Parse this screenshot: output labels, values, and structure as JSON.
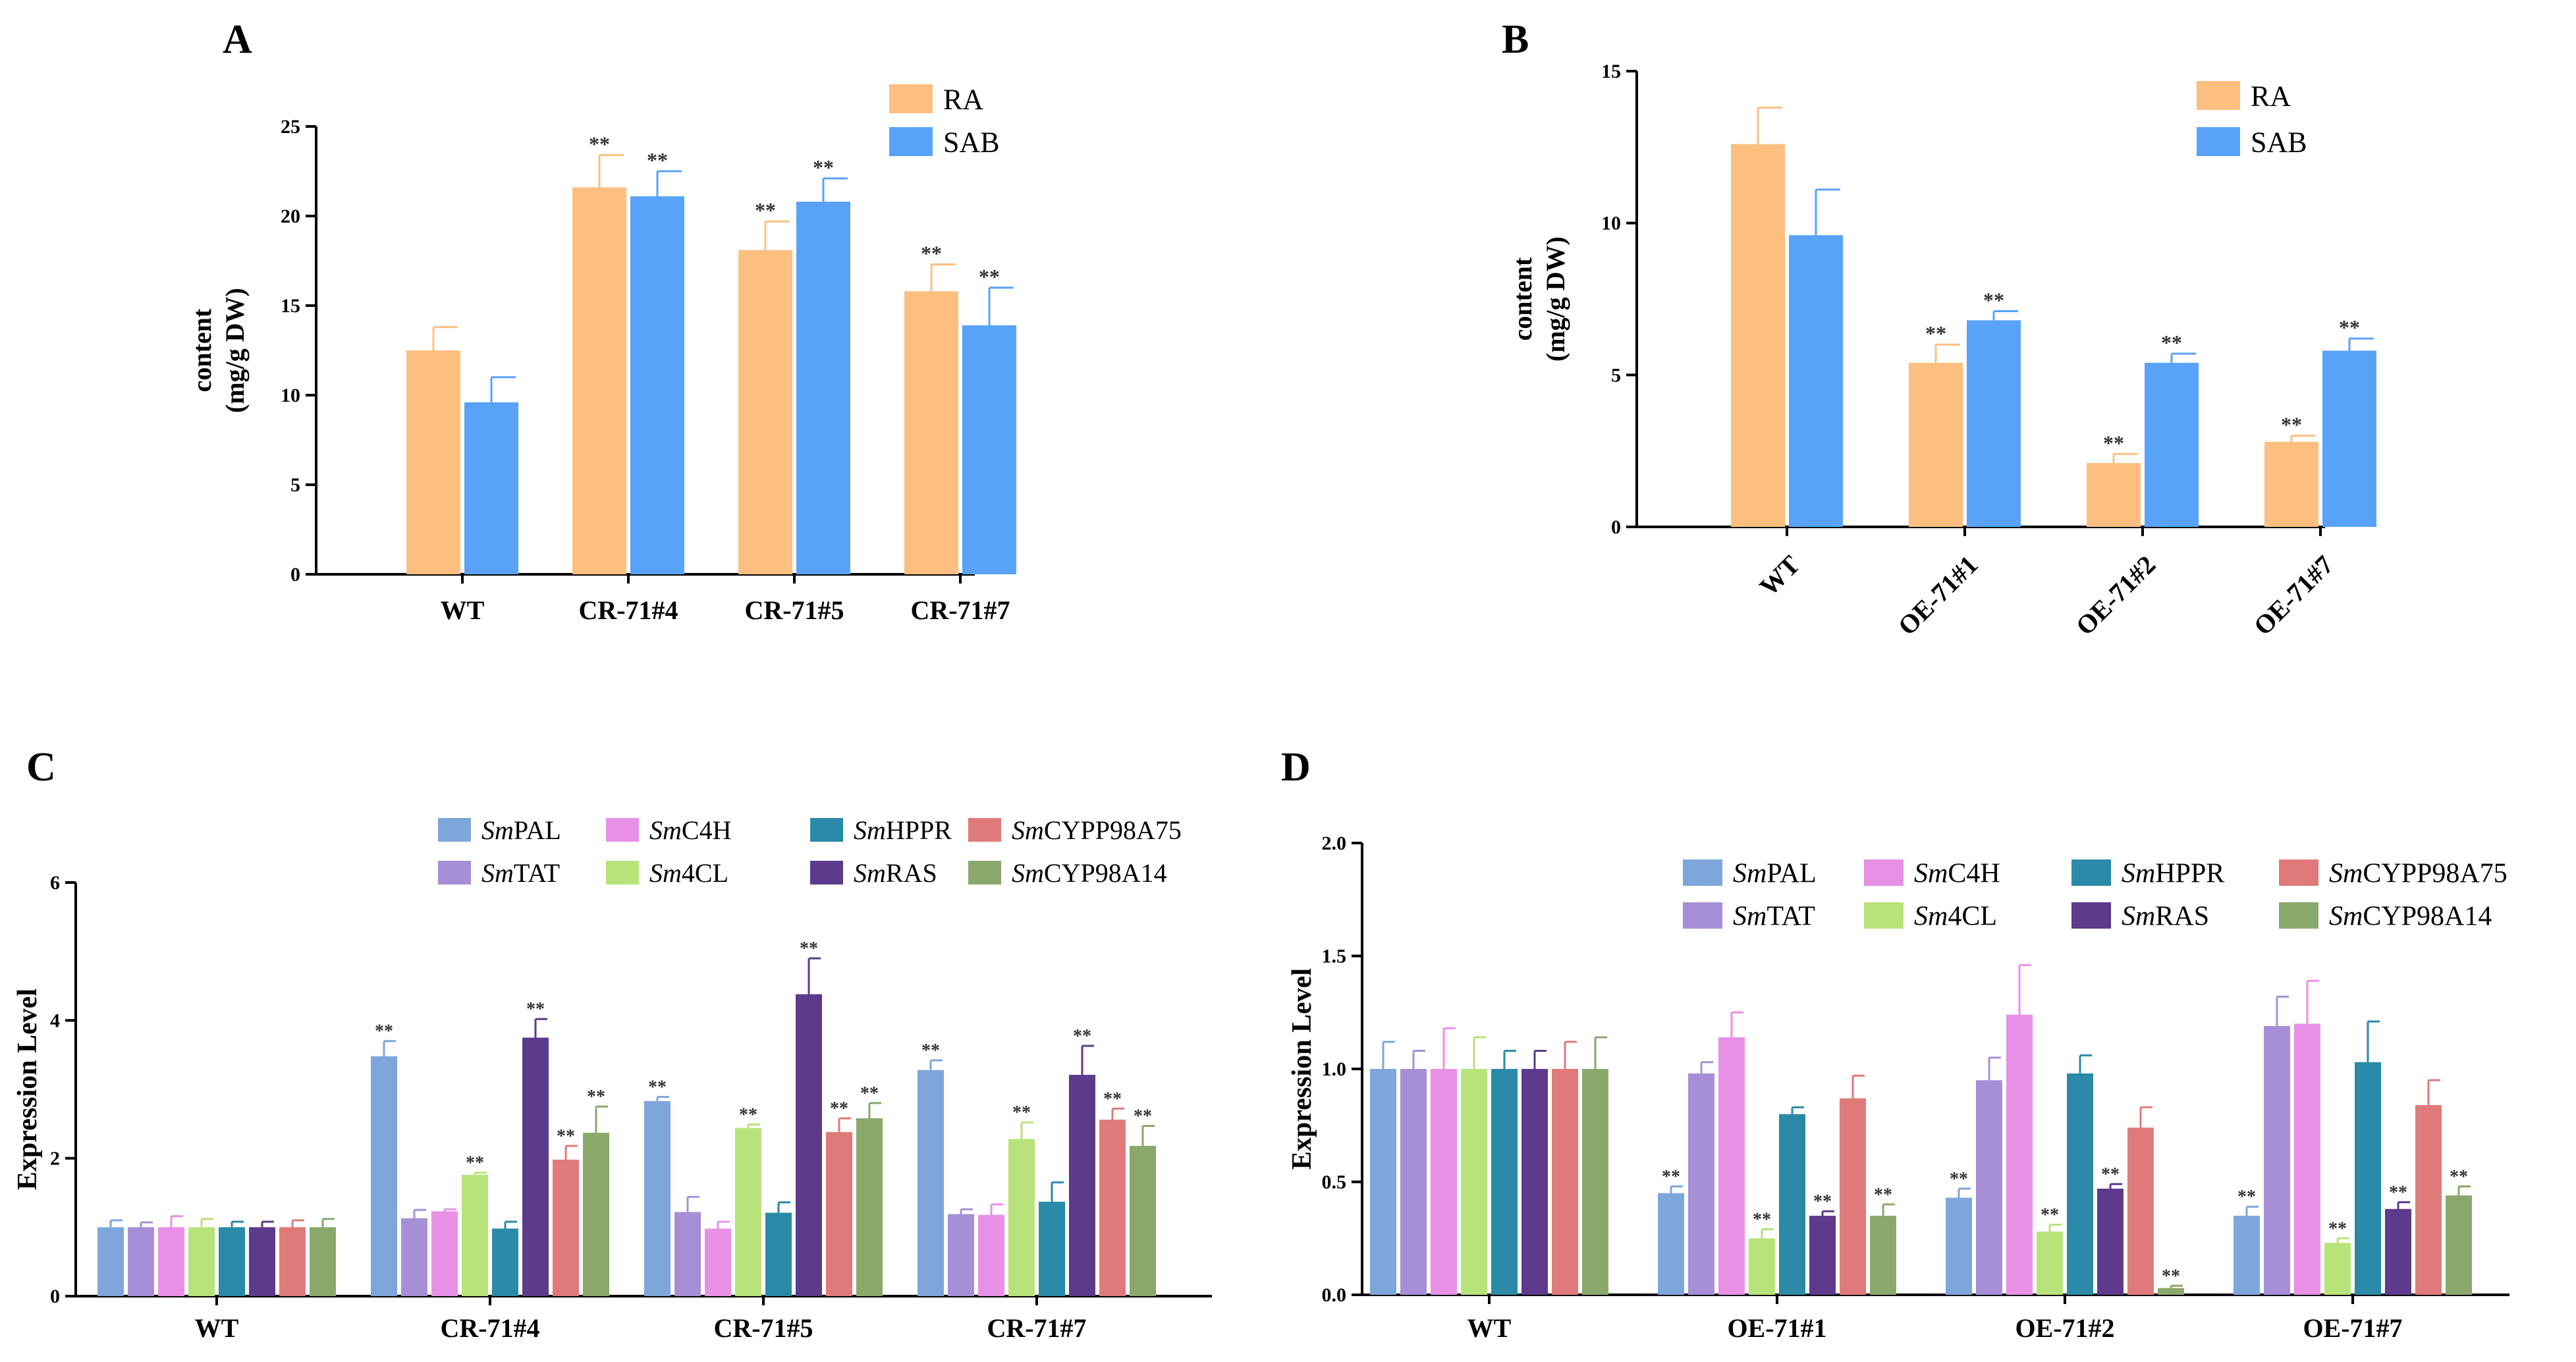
{
  "figure": {
    "panels": [
      "A",
      "B",
      "C",
      "D"
    ]
  },
  "chart_data": [
    {
      "panel": "A",
      "type": "bar",
      "title": "",
      "ylabel": [
        "content",
        "(mg/g DW)"
      ],
      "xlabel": "",
      "ylim": [
        0,
        25
      ],
      "yticks": [
        0,
        5,
        10,
        15,
        20,
        25
      ],
      "categories": [
        "WT",
        "CR-71#4",
        "CR-71#5",
        "CR-71#7"
      ],
      "series": [
        {
          "name": "RA",
          "color": "#FDBF80",
          "values": [
            12.5,
            21.6,
            18.1,
            15.8
          ],
          "errors": [
            1.3,
            1.8,
            1.6,
            1.5
          ],
          "labels": [
            "",
            "**",
            "**",
            "**"
          ]
        },
        {
          "name": "SAB",
          "color": "#58A3F7",
          "values": [
            9.6,
            21.1,
            20.8,
            13.9
          ],
          "errors": [
            1.4,
            1.4,
            1.3,
            2.1
          ],
          "labels": [
            "",
            "**",
            "**",
            "**"
          ]
        }
      ],
      "legend": "top-right"
    },
    {
      "panel": "B",
      "type": "bar",
      "title": "",
      "ylabel": [
        "content",
        "(mg/g DW)"
      ],
      "xlabel": "",
      "ylim": [
        0,
        15
      ],
      "yticks": [
        0,
        5,
        10,
        15
      ],
      "categories": [
        "WT",
        "OE-71#1",
        "OE-71#2",
        "OE-71#7"
      ],
      "series": [
        {
          "name": "RA",
          "color": "#FDBF80",
          "values": [
            12.6,
            5.4,
            2.1,
            2.8
          ],
          "errors": [
            1.2,
            0.6,
            0.3,
            0.2
          ],
          "labels": [
            "",
            "**",
            "**",
            "**"
          ]
        },
        {
          "name": "SAB",
          "color": "#58A3F7",
          "values": [
            9.6,
            6.8,
            5.4,
            5.8
          ],
          "errors": [
            1.5,
            0.3,
            0.3,
            0.4
          ],
          "labels": [
            "",
            "**",
            "**",
            "**"
          ]
        }
      ],
      "legend": "top-right"
    },
    {
      "panel": "C",
      "type": "bar",
      "title": "",
      "ylabel": [
        "Expression Level"
      ],
      "xlabel": "",
      "ylim": [
        0,
        6
      ],
      "yticks": [
        0,
        2,
        4,
        6
      ],
      "categories": [
        "WT",
        "CR-71#4",
        "CR-71#5",
        "CR-71#7"
      ],
      "series": [
        {
          "name": "PAL",
          "prefix": "Sm",
          "color": "#7EA6DA",
          "values": [
            1.0,
            3.48,
            2.83,
            3.28
          ],
          "errors": [
            0.1,
            0.22,
            0.06,
            0.14
          ],
          "labels": [
            "",
            "**",
            "**",
            "**"
          ]
        },
        {
          "name": "TAT",
          "prefix": "Sm",
          "color": "#A68FD6",
          "values": [
            1.0,
            1.13,
            1.22,
            1.19
          ],
          "errors": [
            0.07,
            0.12,
            0.22,
            0.07
          ],
          "labels": [
            "",
            "",
            "",
            ""
          ]
        },
        {
          "name": "C4H",
          "prefix": "Sm",
          "color": "#E890E6",
          "values": [
            1.0,
            1.23,
            0.98,
            1.18
          ],
          "errors": [
            0.16,
            0.03,
            0.1,
            0.15
          ],
          "labels": [
            "",
            "",
            "",
            ""
          ]
        },
        {
          "name": "4CL",
          "prefix": "Sm",
          "color": "#B7E37A",
          "values": [
            1.0,
            1.76,
            2.44,
            2.28
          ],
          "errors": [
            0.12,
            0.03,
            0.05,
            0.24
          ],
          "labels": [
            "",
            "**",
            "**",
            "**"
          ]
        },
        {
          "name": "HPPR",
          "prefix": "Sm",
          "color": "#2A8AA8",
          "values": [
            1.0,
            0.98,
            1.21,
            1.37
          ],
          "errors": [
            0.08,
            0.1,
            0.15,
            0.28
          ],
          "labels": [
            "",
            "",
            "",
            ""
          ]
        },
        {
          "name": "RAS",
          "prefix": "Sm",
          "color": "#5C3A8C",
          "values": [
            1.0,
            3.75,
            4.38,
            3.21
          ],
          "errors": [
            0.08,
            0.27,
            0.52,
            0.42
          ],
          "labels": [
            "",
            "**",
            "**",
            "**"
          ]
        },
        {
          "name": "CYPP98A75",
          "prefix": "Sm",
          "color": "#E07A7A",
          "values": [
            1.0,
            1.98,
            2.38,
            2.56
          ],
          "errors": [
            0.1,
            0.2,
            0.2,
            0.16
          ],
          "labels": [
            "",
            "**",
            "**",
            "**"
          ]
        },
        {
          "name": "CYP98A14",
          "prefix": "Sm",
          "color": "#8AA86C",
          "values": [
            1.0,
            2.37,
            2.58,
            2.18
          ],
          "errors": [
            0.12,
            0.38,
            0.22,
            0.29
          ],
          "labels": [
            "",
            "**",
            "**",
            "**"
          ]
        }
      ],
      "legend": "top-right"
    },
    {
      "panel": "D",
      "type": "bar",
      "title": "",
      "ylabel": [
        "Expression Level"
      ],
      "xlabel": "",
      "ylim": [
        0,
        2.0
      ],
      "yticks": [
        "0.0",
        "0.5",
        "1.0",
        "1.5",
        "2.0"
      ],
      "categories": [
        "WT",
        "OE-71#1",
        "OE-71#2",
        "OE-71#7"
      ],
      "series": [
        {
          "name": "PAL",
          "prefix": "Sm",
          "color": "#7EA6DA",
          "values": [
            1.0,
            0.45,
            0.43,
            0.35
          ],
          "errors": [
            0.12,
            0.03,
            0.04,
            0.04
          ],
          "labels": [
            "",
            "**",
            "**",
            "**"
          ]
        },
        {
          "name": "TAT",
          "prefix": "Sm",
          "color": "#A68FD6",
          "values": [
            1.0,
            0.98,
            0.95,
            1.19
          ],
          "errors": [
            0.08,
            0.05,
            0.1,
            0.13
          ],
          "labels": [
            "",
            "",
            "",
            ""
          ]
        },
        {
          "name": "C4H",
          "prefix": "Sm",
          "color": "#E890E6",
          "values": [
            1.0,
            1.14,
            1.24,
            1.2
          ],
          "errors": [
            0.18,
            0.11,
            0.22,
            0.19
          ],
          "labels": [
            "",
            "",
            "",
            ""
          ]
        },
        {
          "name": "4CL",
          "prefix": "Sm",
          "color": "#B7E37A",
          "values": [
            1.0,
            0.25,
            0.28,
            0.23
          ],
          "errors": [
            0.14,
            0.04,
            0.03,
            0.02
          ],
          "labels": [
            "",
            "**",
            "**",
            "**"
          ]
        },
        {
          "name": "HPPR",
          "prefix": "Sm",
          "color": "#2A8AA8",
          "values": [
            1.0,
            0.8,
            0.98,
            1.03
          ],
          "errors": [
            0.08,
            0.03,
            0.08,
            0.18
          ],
          "labels": [
            "",
            "",
            "",
            ""
          ]
        },
        {
          "name": "RAS",
          "prefix": "Sm",
          "color": "#5C3A8C",
          "values": [
            1.0,
            0.35,
            0.47,
            0.38
          ],
          "errors": [
            0.08,
            0.02,
            0.02,
            0.03
          ],
          "labels": [
            "",
            "**",
            "**",
            "**"
          ]
        },
        {
          "name": "CYPP98A75",
          "prefix": "Sm",
          "color": "#E07A7A",
          "values": [
            1.0,
            0.87,
            0.74,
            0.84
          ],
          "errors": [
            0.12,
            0.1,
            0.09,
            0.11
          ],
          "labels": [
            "",
            "",
            "",
            ""
          ]
        },
        {
          "name": "CYP98A14",
          "prefix": "Sm",
          "color": "#8AA86C",
          "values": [
            1.0,
            0.35,
            0.03,
            0.44
          ],
          "errors": [
            0.14,
            0.05,
            0.01,
            0.04
          ],
          "labels": [
            "",
            "**",
            "**",
            "**"
          ]
        }
      ],
      "legend": "top-right"
    }
  ]
}
